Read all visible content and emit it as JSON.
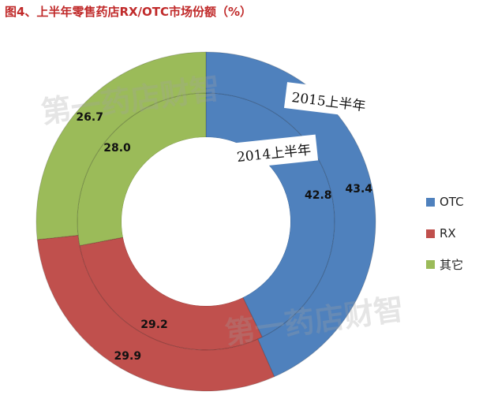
{
  "title": "图4、上半年零售药店RX/OTC市场份额（%）",
  "colors": {
    "OTC": "#4f81bd",
    "RX": "#c0504d",
    "其它": "#9bbb59"
  },
  "legend": [
    "OTC",
    "RX",
    "其它"
  ],
  "callouts": {
    "outer": "2015上半年",
    "inner": "2014上半年"
  },
  "watermark": "第一药店财智",
  "chart_data": {
    "type": "pie",
    "subtype": "donut",
    "categories": [
      "OTC",
      "RX",
      "其它"
    ],
    "series": [
      {
        "name": "2014上半年",
        "ring": "inner",
        "values": [
          42.8,
          29.2,
          28.0
        ]
      },
      {
        "name": "2015上半年",
        "ring": "outer",
        "values": [
          43.4,
          29.9,
          26.7
        ]
      }
    ],
    "labels": {
      "inner": [
        "42.8",
        "29.2",
        "28.0"
      ],
      "outer": [
        "43.4",
        "29.9",
        "26.7"
      ]
    },
    "legend_position": "right"
  }
}
